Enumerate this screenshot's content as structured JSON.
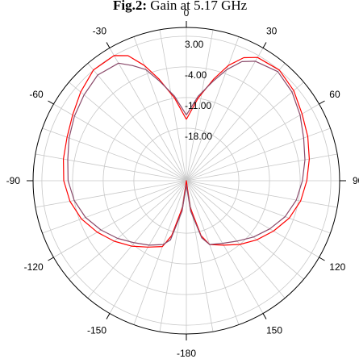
{
  "title": {
    "bold": "Fig.2:",
    "rest": " Gain at 5.17 GHz"
  },
  "chart_data": {
    "type": "polar-line",
    "title": "Fig.2: Gain at 5.17 GHz",
    "angle_unit": "degrees",
    "angle_zero": "top",
    "angle_direction": "clockwise",
    "angle_labels": [
      {
        "deg": 0,
        "text": "0"
      },
      {
        "deg": 30,
        "text": "30"
      },
      {
        "deg": 60,
        "text": "60"
      },
      {
        "deg": 90,
        "text": "90"
      },
      {
        "deg": 120,
        "text": "120"
      },
      {
        "deg": 150,
        "text": "150"
      },
      {
        "deg": 180,
        "text": "-180"
      },
      {
        "deg": -150,
        "text": "-150"
      },
      {
        "deg": -120,
        "text": "-120"
      },
      {
        "deg": -90,
        "text": "-90"
      },
      {
        "deg": -60,
        "text": "-60"
      },
      {
        "deg": -30,
        "text": "-30"
      }
    ],
    "radial_range": [
      -30,
      5
    ],
    "radial_ticks": [
      {
        "value": 3,
        "text": "3.00"
      },
      {
        "value": -4,
        "text": "-4.00"
      },
      {
        "value": -11,
        "text": "-11.00"
      },
      {
        "value": -18,
        "text": "-18.00"
      }
    ],
    "grid": true,
    "series": [
      {
        "color": "#ff0000",
        "points": [
          [
            0,
            -16.0
          ],
          [
            8,
            -11.0
          ],
          [
            15,
            -6.0
          ],
          [
            20,
            -2.0
          ],
          [
            25,
            1.0
          ],
          [
            30,
            2.5
          ],
          [
            40,
            3.0
          ],
          [
            50,
            2.0
          ],
          [
            60,
            0.5
          ],
          [
            70,
            -0.5
          ],
          [
            80,
            -1.5
          ],
          [
            90,
            -2.5
          ],
          [
            100,
            -3.5
          ],
          [
            110,
            -5.0
          ],
          [
            120,
            -7.0
          ],
          [
            130,
            -9.0
          ],
          [
            140,
            -11.0
          ],
          [
            150,
            -13.0
          ],
          [
            160,
            -14.5
          ],
          [
            165,
            -17.0
          ],
          [
            172,
            -24.0
          ],
          [
            180,
            -30.0
          ],
          [
            -172,
            -24.0
          ],
          [
            -165,
            -17.0
          ],
          [
            -160,
            -14.0
          ],
          [
            -150,
            -12.5
          ],
          [
            -140,
            -10.5
          ],
          [
            -130,
            -8.5
          ],
          [
            -120,
            -6.5
          ],
          [
            -110,
            -4.5
          ],
          [
            -100,
            -3.0
          ],
          [
            -90,
            -2.0
          ],
          [
            -80,
            -1.5
          ],
          [
            -70,
            -1.0
          ],
          [
            -60,
            0.0
          ],
          [
            -50,
            1.5
          ],
          [
            -40,
            3.0
          ],
          [
            -30,
            3.0
          ],
          [
            -25,
            1.5
          ],
          [
            -20,
            -2.0
          ],
          [
            -15,
            -6.0
          ],
          [
            -8,
            -11.0
          ],
          [
            0,
            -16.0
          ]
        ]
      },
      {
        "color": "#8a4a6a",
        "points": [
          [
            0,
            -15.0
          ],
          [
            8,
            -10.5
          ],
          [
            15,
            -6.5
          ],
          [
            20,
            -3.0
          ],
          [
            25,
            0.0
          ],
          [
            30,
            1.5
          ],
          [
            40,
            2.5
          ],
          [
            50,
            1.5
          ],
          [
            60,
            0.0
          ],
          [
            70,
            -1.5
          ],
          [
            80,
            -2.5
          ],
          [
            90,
            -3.5
          ],
          [
            100,
            -4.5
          ],
          [
            110,
            -6.0
          ],
          [
            120,
            -8.0
          ],
          [
            130,
            -10.0
          ],
          [
            140,
            -12.0
          ],
          [
            150,
            -13.5
          ],
          [
            160,
            -14.5
          ],
          [
            165,
            -16.5
          ],
          [
            172,
            -23.0
          ],
          [
            180,
            -29.0
          ],
          [
            -172,
            -23.0
          ],
          [
            -165,
            -16.0
          ],
          [
            -160,
            -14.5
          ],
          [
            -150,
            -13.0
          ],
          [
            -140,
            -11.5
          ],
          [
            -130,
            -9.5
          ],
          [
            -120,
            -7.5
          ],
          [
            -110,
            -5.5
          ],
          [
            -100,
            -4.0
          ],
          [
            -90,
            -3.0
          ],
          [
            -80,
            -2.5
          ],
          [
            -70,
            -1.5
          ],
          [
            -60,
            -0.5
          ],
          [
            -50,
            0.5
          ],
          [
            -40,
            1.5
          ],
          [
            -30,
            1.0
          ],
          [
            -25,
            -1.0
          ],
          [
            -20,
            -3.0
          ],
          [
            -15,
            -6.5
          ],
          [
            -8,
            -10.5
          ],
          [
            0,
            -15.0
          ]
        ]
      }
    ]
  }
}
